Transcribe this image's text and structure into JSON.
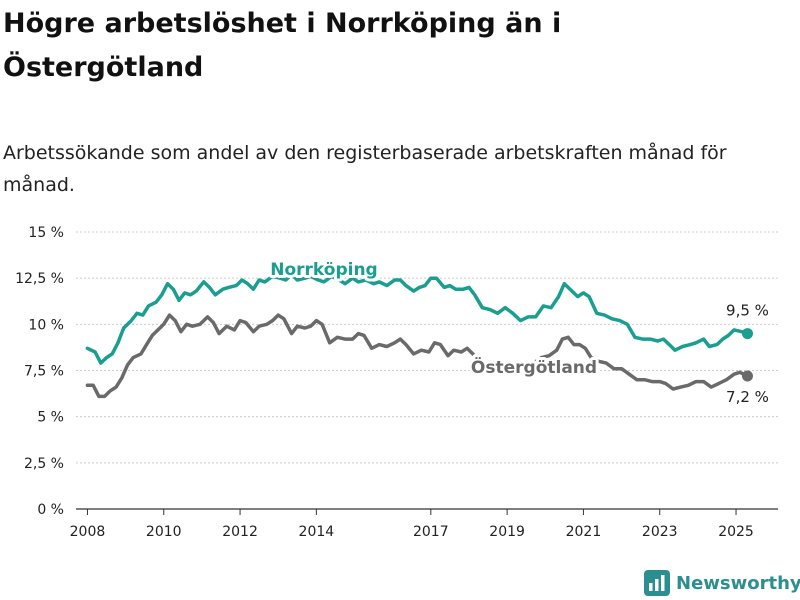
{
  "title": "Högre arbetslöshet i Norrköping än i Östergötland",
  "subtitle": "Arbetssökande som andel av den registerbaserade arbetskraften månad för månad.",
  "brand": {
    "name": "Newsworthy",
    "logo_icon": "newsworthy-logo-icon",
    "color": "#2b8f8f"
  },
  "chart_data": {
    "type": "line",
    "title": "Högre arbetslöshet i Norrköping än i Östergötland",
    "subtitle": "Arbetssökande som andel av den registerbaserade arbetskraften månad för månad.",
    "xlabel": "",
    "ylabel": "",
    "xlim": [
      2007.7,
      2026.1
    ],
    "ylim": [
      0,
      15
    ],
    "yticks": [
      0,
      2.5,
      5,
      7.5,
      10,
      12.5,
      15
    ],
    "ytick_labels": [
      "0 %",
      "2,5 %",
      "5 %",
      "7,5 %",
      "10 %",
      "12,5 %",
      "15 %"
    ],
    "xticks": [
      2008,
      2010,
      2012,
      2014,
      2017,
      2019,
      2021,
      2023,
      2025
    ],
    "xtick_labels": [
      "2008",
      "2010",
      "2012",
      "2014",
      "2017",
      "2019",
      "2021",
      "2023",
      "2025"
    ],
    "grid": "horizontal",
    "legend": "inline labels",
    "series": [
      {
        "name": "Norrköping",
        "color": "#1a9e8f",
        "end_label": "9,5 %",
        "points": [
          [
            2008.0,
            8.7
          ],
          [
            2008.2,
            8.5
          ],
          [
            2008.35,
            7.9
          ],
          [
            2008.5,
            8.2
          ],
          [
            2008.65,
            8.4
          ],
          [
            2008.8,
            9.0
          ],
          [
            2008.95,
            9.8
          ],
          [
            2009.15,
            10.2
          ],
          [
            2009.3,
            10.6
          ],
          [
            2009.45,
            10.5
          ],
          [
            2009.6,
            11.0
          ],
          [
            2009.8,
            11.2
          ],
          [
            2009.95,
            11.6
          ],
          [
            2010.1,
            12.2
          ],
          [
            2010.25,
            11.9
          ],
          [
            2010.4,
            11.3
          ],
          [
            2010.55,
            11.7
          ],
          [
            2010.7,
            11.6
          ],
          [
            2010.85,
            11.8
          ],
          [
            2011.05,
            12.3
          ],
          [
            2011.2,
            12.0
          ],
          [
            2011.35,
            11.6
          ],
          [
            2011.55,
            11.9
          ],
          [
            2011.7,
            12.0
          ],
          [
            2011.9,
            12.1
          ],
          [
            2012.05,
            12.4
          ],
          [
            2012.2,
            12.2
          ],
          [
            2012.35,
            11.9
          ],
          [
            2012.5,
            12.4
          ],
          [
            2012.65,
            12.3
          ],
          [
            2012.85,
            12.6
          ],
          [
            2013.05,
            12.5
          ],
          [
            2013.2,
            12.4
          ],
          [
            2013.35,
            12.7
          ],
          [
            2013.5,
            12.4
          ],
          [
            2013.7,
            12.5
          ],
          [
            2013.85,
            12.6
          ],
          [
            2014.05,
            12.4
          ],
          [
            2014.2,
            12.3
          ],
          [
            2014.4,
            12.6
          ],
          [
            2014.6,
            12.4
          ],
          [
            2014.75,
            12.2
          ],
          [
            2014.95,
            12.5
          ],
          [
            2015.1,
            12.3
          ],
          [
            2015.3,
            12.4
          ],
          [
            2015.5,
            12.2
          ],
          [
            2015.65,
            12.3
          ],
          [
            2015.85,
            12.1
          ],
          [
            2016.05,
            12.4
          ],
          [
            2016.2,
            12.4
          ],
          [
            2016.35,
            12.1
          ],
          [
            2016.55,
            11.8
          ],
          [
            2016.7,
            12.0
          ],
          [
            2016.85,
            12.1
          ],
          [
            2017.0,
            12.5
          ],
          [
            2017.15,
            12.5
          ],
          [
            2017.35,
            12.0
          ],
          [
            2017.5,
            12.1
          ],
          [
            2017.65,
            11.9
          ],
          [
            2017.85,
            11.9
          ],
          [
            2018.0,
            12.0
          ],
          [
            2018.15,
            11.6
          ],
          [
            2018.35,
            10.9
          ],
          [
            2018.55,
            10.8
          ],
          [
            2018.75,
            10.6
          ],
          [
            2018.95,
            10.9
          ],
          [
            2019.15,
            10.6
          ],
          [
            2019.35,
            10.2
          ],
          [
            2019.55,
            10.4
          ],
          [
            2019.75,
            10.4
          ],
          [
            2019.95,
            11.0
          ],
          [
            2020.15,
            10.9
          ],
          [
            2020.35,
            11.5
          ],
          [
            2020.5,
            12.2
          ],
          [
            2020.7,
            11.8
          ],
          [
            2020.85,
            11.5
          ],
          [
            2021.0,
            11.7
          ],
          [
            2021.15,
            11.5
          ],
          [
            2021.35,
            10.6
          ],
          [
            2021.55,
            10.5
          ],
          [
            2021.75,
            10.3
          ],
          [
            2021.95,
            10.2
          ],
          [
            2022.15,
            10.0
          ],
          [
            2022.35,
            9.3
          ],
          [
            2022.55,
            9.2
          ],
          [
            2022.75,
            9.2
          ],
          [
            2022.95,
            9.1
          ],
          [
            2023.1,
            9.2
          ],
          [
            2023.25,
            8.9
          ],
          [
            2023.4,
            8.6
          ],
          [
            2023.6,
            8.8
          ],
          [
            2023.8,
            8.9
          ],
          [
            2023.95,
            9.0
          ],
          [
            2024.15,
            9.2
          ],
          [
            2024.3,
            8.8
          ],
          [
            2024.5,
            8.9
          ],
          [
            2024.65,
            9.2
          ],
          [
            2024.8,
            9.4
          ],
          [
            2024.95,
            9.7
          ],
          [
            2025.15,
            9.6
          ],
          [
            2025.3,
            9.5
          ]
        ]
      },
      {
        "name": "Östergötland",
        "color": "#6a6a6a",
        "end_label": "7,2 %",
        "points": [
          [
            2008.0,
            6.7
          ],
          [
            2008.15,
            6.7
          ],
          [
            2008.3,
            6.1
          ],
          [
            2008.45,
            6.1
          ],
          [
            2008.6,
            6.4
          ],
          [
            2008.75,
            6.6
          ],
          [
            2008.9,
            7.1
          ],
          [
            2009.05,
            7.8
          ],
          [
            2009.2,
            8.2
          ],
          [
            2009.4,
            8.4
          ],
          [
            2009.55,
            8.9
          ],
          [
            2009.7,
            9.4
          ],
          [
            2009.85,
            9.7
          ],
          [
            2010.0,
            10.0
          ],
          [
            2010.15,
            10.5
          ],
          [
            2010.3,
            10.2
          ],
          [
            2010.45,
            9.6
          ],
          [
            2010.6,
            10.0
          ],
          [
            2010.75,
            9.9
          ],
          [
            2010.95,
            10.0
          ],
          [
            2011.15,
            10.4
          ],
          [
            2011.3,
            10.1
          ],
          [
            2011.45,
            9.5
          ],
          [
            2011.65,
            9.9
          ],
          [
            2011.85,
            9.7
          ],
          [
            2012.0,
            10.2
          ],
          [
            2012.15,
            10.1
          ],
          [
            2012.35,
            9.6
          ],
          [
            2012.5,
            9.9
          ],
          [
            2012.7,
            10.0
          ],
          [
            2012.85,
            10.2
          ],
          [
            2013.0,
            10.5
          ],
          [
            2013.15,
            10.3
          ],
          [
            2013.35,
            9.5
          ],
          [
            2013.5,
            9.9
          ],
          [
            2013.7,
            9.8
          ],
          [
            2013.85,
            9.9
          ],
          [
            2014.0,
            10.2
          ],
          [
            2014.15,
            10.0
          ],
          [
            2014.35,
            9.0
          ],
          [
            2014.55,
            9.3
          ],
          [
            2014.75,
            9.2
          ],
          [
            2014.95,
            9.2
          ],
          [
            2015.1,
            9.5
          ],
          [
            2015.25,
            9.4
          ],
          [
            2015.45,
            8.7
          ],
          [
            2015.65,
            8.9
          ],
          [
            2015.85,
            8.8
          ],
          [
            2016.05,
            9.0
          ],
          [
            2016.2,
            9.2
          ],
          [
            2016.35,
            8.9
          ],
          [
            2016.55,
            8.4
          ],
          [
            2016.75,
            8.6
          ],
          [
            2016.95,
            8.5
          ],
          [
            2017.1,
            9.0
          ],
          [
            2017.25,
            8.9
          ],
          [
            2017.45,
            8.3
          ],
          [
            2017.6,
            8.6
          ],
          [
            2017.8,
            8.5
          ],
          [
            2017.95,
            8.7
          ],
          [
            2018.15,
            8.3
          ],
          [
            2018.3,
            8.1
          ],
          [
            2018.5,
            7.8
          ],
          [
            2018.7,
            7.8
          ],
          [
            2018.9,
            7.9
          ],
          [
            2019.1,
            7.7
          ],
          [
            2019.3,
            7.6
          ],
          [
            2019.5,
            7.8
          ],
          [
            2019.7,
            7.9
          ],
          [
            2019.9,
            8.2
          ],
          [
            2020.1,
            8.3
          ],
          [
            2020.3,
            8.6
          ],
          [
            2020.45,
            9.2
          ],
          [
            2020.6,
            9.3
          ],
          [
            2020.75,
            8.9
          ],
          [
            2020.9,
            8.9
          ],
          [
            2021.05,
            8.7
          ],
          [
            2021.2,
            8.2
          ],
          [
            2021.4,
            8.0
          ],
          [
            2021.6,
            7.9
          ],
          [
            2021.8,
            7.6
          ],
          [
            2022.0,
            7.6
          ],
          [
            2022.2,
            7.3
          ],
          [
            2022.4,
            7.0
          ],
          [
            2022.6,
            7.0
          ],
          [
            2022.8,
            6.9
          ],
          [
            2023.0,
            6.9
          ],
          [
            2023.15,
            6.8
          ],
          [
            2023.35,
            6.5
          ],
          [
            2023.55,
            6.6
          ],
          [
            2023.75,
            6.7
          ],
          [
            2023.95,
            6.9
          ],
          [
            2024.15,
            6.9
          ],
          [
            2024.35,
            6.6
          ],
          [
            2024.55,
            6.8
          ],
          [
            2024.75,
            7.0
          ],
          [
            2024.95,
            7.3
          ],
          [
            2025.1,
            7.4
          ],
          [
            2025.3,
            7.2
          ]
        ]
      }
    ]
  }
}
